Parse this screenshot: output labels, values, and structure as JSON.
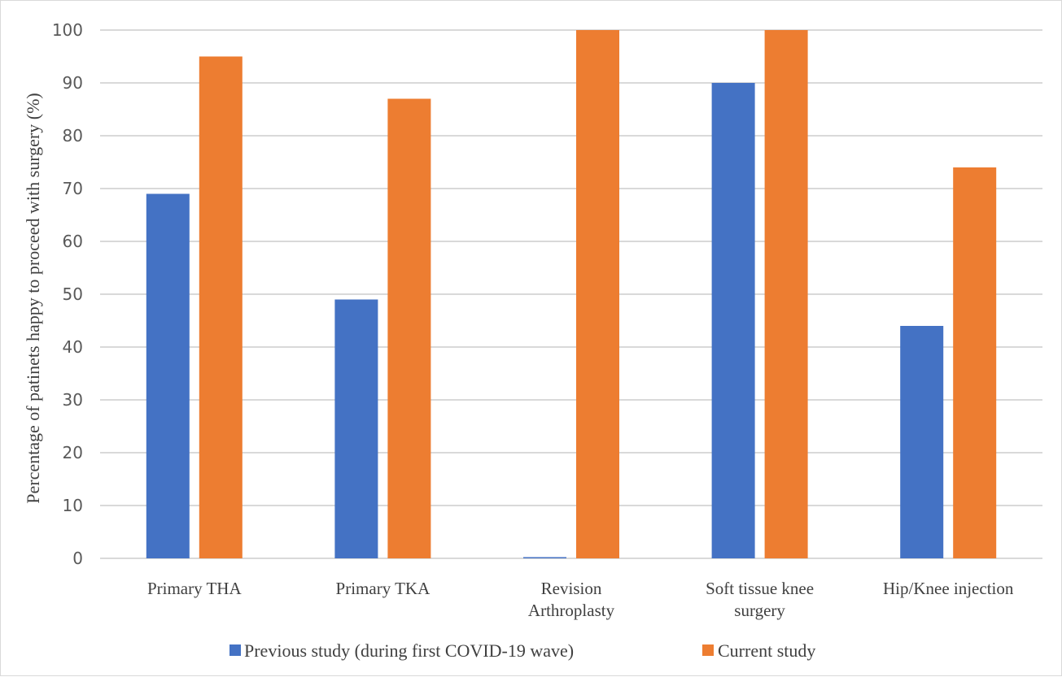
{
  "chart_data": {
    "type": "bar",
    "title": "",
    "ylabel": "Percentage of patinets happy to proceed with surgery (%)",
    "xlabel": "",
    "ylim": [
      0,
      100
    ],
    "yticks": [
      "0",
      "10",
      "20",
      "30",
      "40",
      "50",
      "60",
      "70",
      "80",
      "90",
      "100"
    ],
    "categories": [
      [
        "Primary THA"
      ],
      [
        "Primary TKA"
      ],
      [
        "Revision",
        "Arthroplasty"
      ],
      [
        "Soft tissue knee",
        "surgery"
      ],
      [
        "Hip/Knee injection"
      ]
    ],
    "series": [
      {
        "name": "Previous study (during first COVID-19 wave)",
        "color": "#4472c4",
        "values": [
          69,
          49,
          0,
          90,
          44
        ]
      },
      {
        "name": "Current study",
        "color": "#ed7d31",
        "values": [
          95,
          87,
          100,
          100,
          74
        ]
      }
    ],
    "grid": true,
    "gridColor": "#d9d9d9",
    "legend": "bottom"
  }
}
